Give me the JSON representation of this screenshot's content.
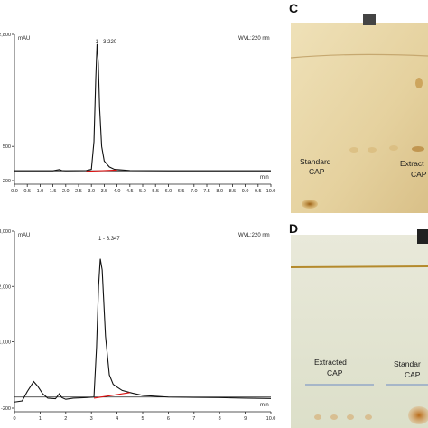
{
  "chart_data": [
    {
      "type": "line",
      "ylabel": "mAU",
      "xlabel": "min",
      "wavelength_label": "WVL:220 nm",
      "x_ticks": [
        "0.0",
        "0.5",
        "1.0",
        "1.5",
        "2.0",
        "2.5",
        "3.0",
        "3.5",
        "4.0",
        "4.5",
        "5.0",
        "5.5",
        "6.0",
        "6.5",
        "7.0",
        "7.5",
        "8.0",
        "8.5",
        "9.0",
        "9.5",
        "10.0"
      ],
      "y_ticks": [
        "2,800",
        "",
        "500",
        "-200"
      ],
      "xlim": [
        0,
        10
      ],
      "ylim": [
        -200,
        2800
      ],
      "peaks": [
        {
          "label": "1 - 3.220",
          "rt": 3.22
        }
      ],
      "series": [
        {
          "x": [
            0.0,
            1.5,
            1.75,
            1.85,
            2.0,
            2.8,
            3.0,
            3.1,
            3.17,
            3.22,
            3.27,
            3.32,
            3.4,
            3.5,
            3.7,
            3.9,
            4.5,
            6.0,
            8.0,
            10.0
          ],
          "y": [
            0,
            0,
            25,
            5,
            0,
            5,
            30,
            600,
            1900,
            2600,
            2200,
            1300,
            500,
            200,
            80,
            30,
            5,
            0,
            0,
            0
          ]
        }
      ],
      "baseline": {
        "x": [
          2.8,
          4.0
        ],
        "y": [
          -10,
          15
        ]
      }
    },
    {
      "type": "line",
      "ylabel": "mAU",
      "xlabel": "min",
      "wavelength_label": "WVL:220 nm",
      "x_ticks": [
        "0",
        "1",
        "2",
        "3",
        "4",
        "5",
        "6",
        "7",
        "8",
        "9",
        "10.0"
      ],
      "y_ticks": [
        "3,000",
        "2,000",
        "1,000",
        "-200"
      ],
      "xlim": [
        0,
        10
      ],
      "ylim": [
        -200,
        3000
      ],
      "peaks": [
        {
          "label": "1 - 3.347",
          "rt": 3.347
        }
      ],
      "series": [
        {
          "x": [
            0.0,
            0.3,
            0.5,
            0.75,
            0.9,
            1.1,
            1.3,
            1.6,
            1.75,
            1.85,
            2.0,
            2.3,
            2.8,
            3.1,
            3.2,
            3.28,
            3.347,
            3.42,
            3.55,
            3.7,
            3.85,
            4.0,
            4.2,
            4.6,
            5.0,
            6.0,
            7.0,
            8.0,
            9.0,
            10.0
          ],
          "y": [
            -90,
            -70,
            100,
            280,
            200,
            60,
            -20,
            -30,
            60,
            -10,
            -40,
            -20,
            -10,
            0,
            900,
            2000,
            2500,
            2300,
            1100,
            400,
            230,
            180,
            120,
            70,
            30,
            0,
            -5,
            -10,
            -20,
            -25
          ]
        }
      ],
      "baseline": {
        "x": [
          3.1,
          4.5
        ],
        "y": [
          -20,
          80
        ]
      }
    }
  ],
  "panels": {
    "c": {
      "letter": "C",
      "label_left": [
        "Standard",
        "CAP"
      ],
      "label_right": [
        "Extract",
        "CAP"
      ],
      "bg_color": "#e8d7a8",
      "spot_color": "#a8701c"
    },
    "d": {
      "letter": "D",
      "label_left": [
        "Extracted",
        "CAP"
      ],
      "label_right": [
        "Standar",
        "CAP"
      ],
      "bg_color": "#e2e4d3",
      "spot_color": "#c87a2a"
    }
  }
}
